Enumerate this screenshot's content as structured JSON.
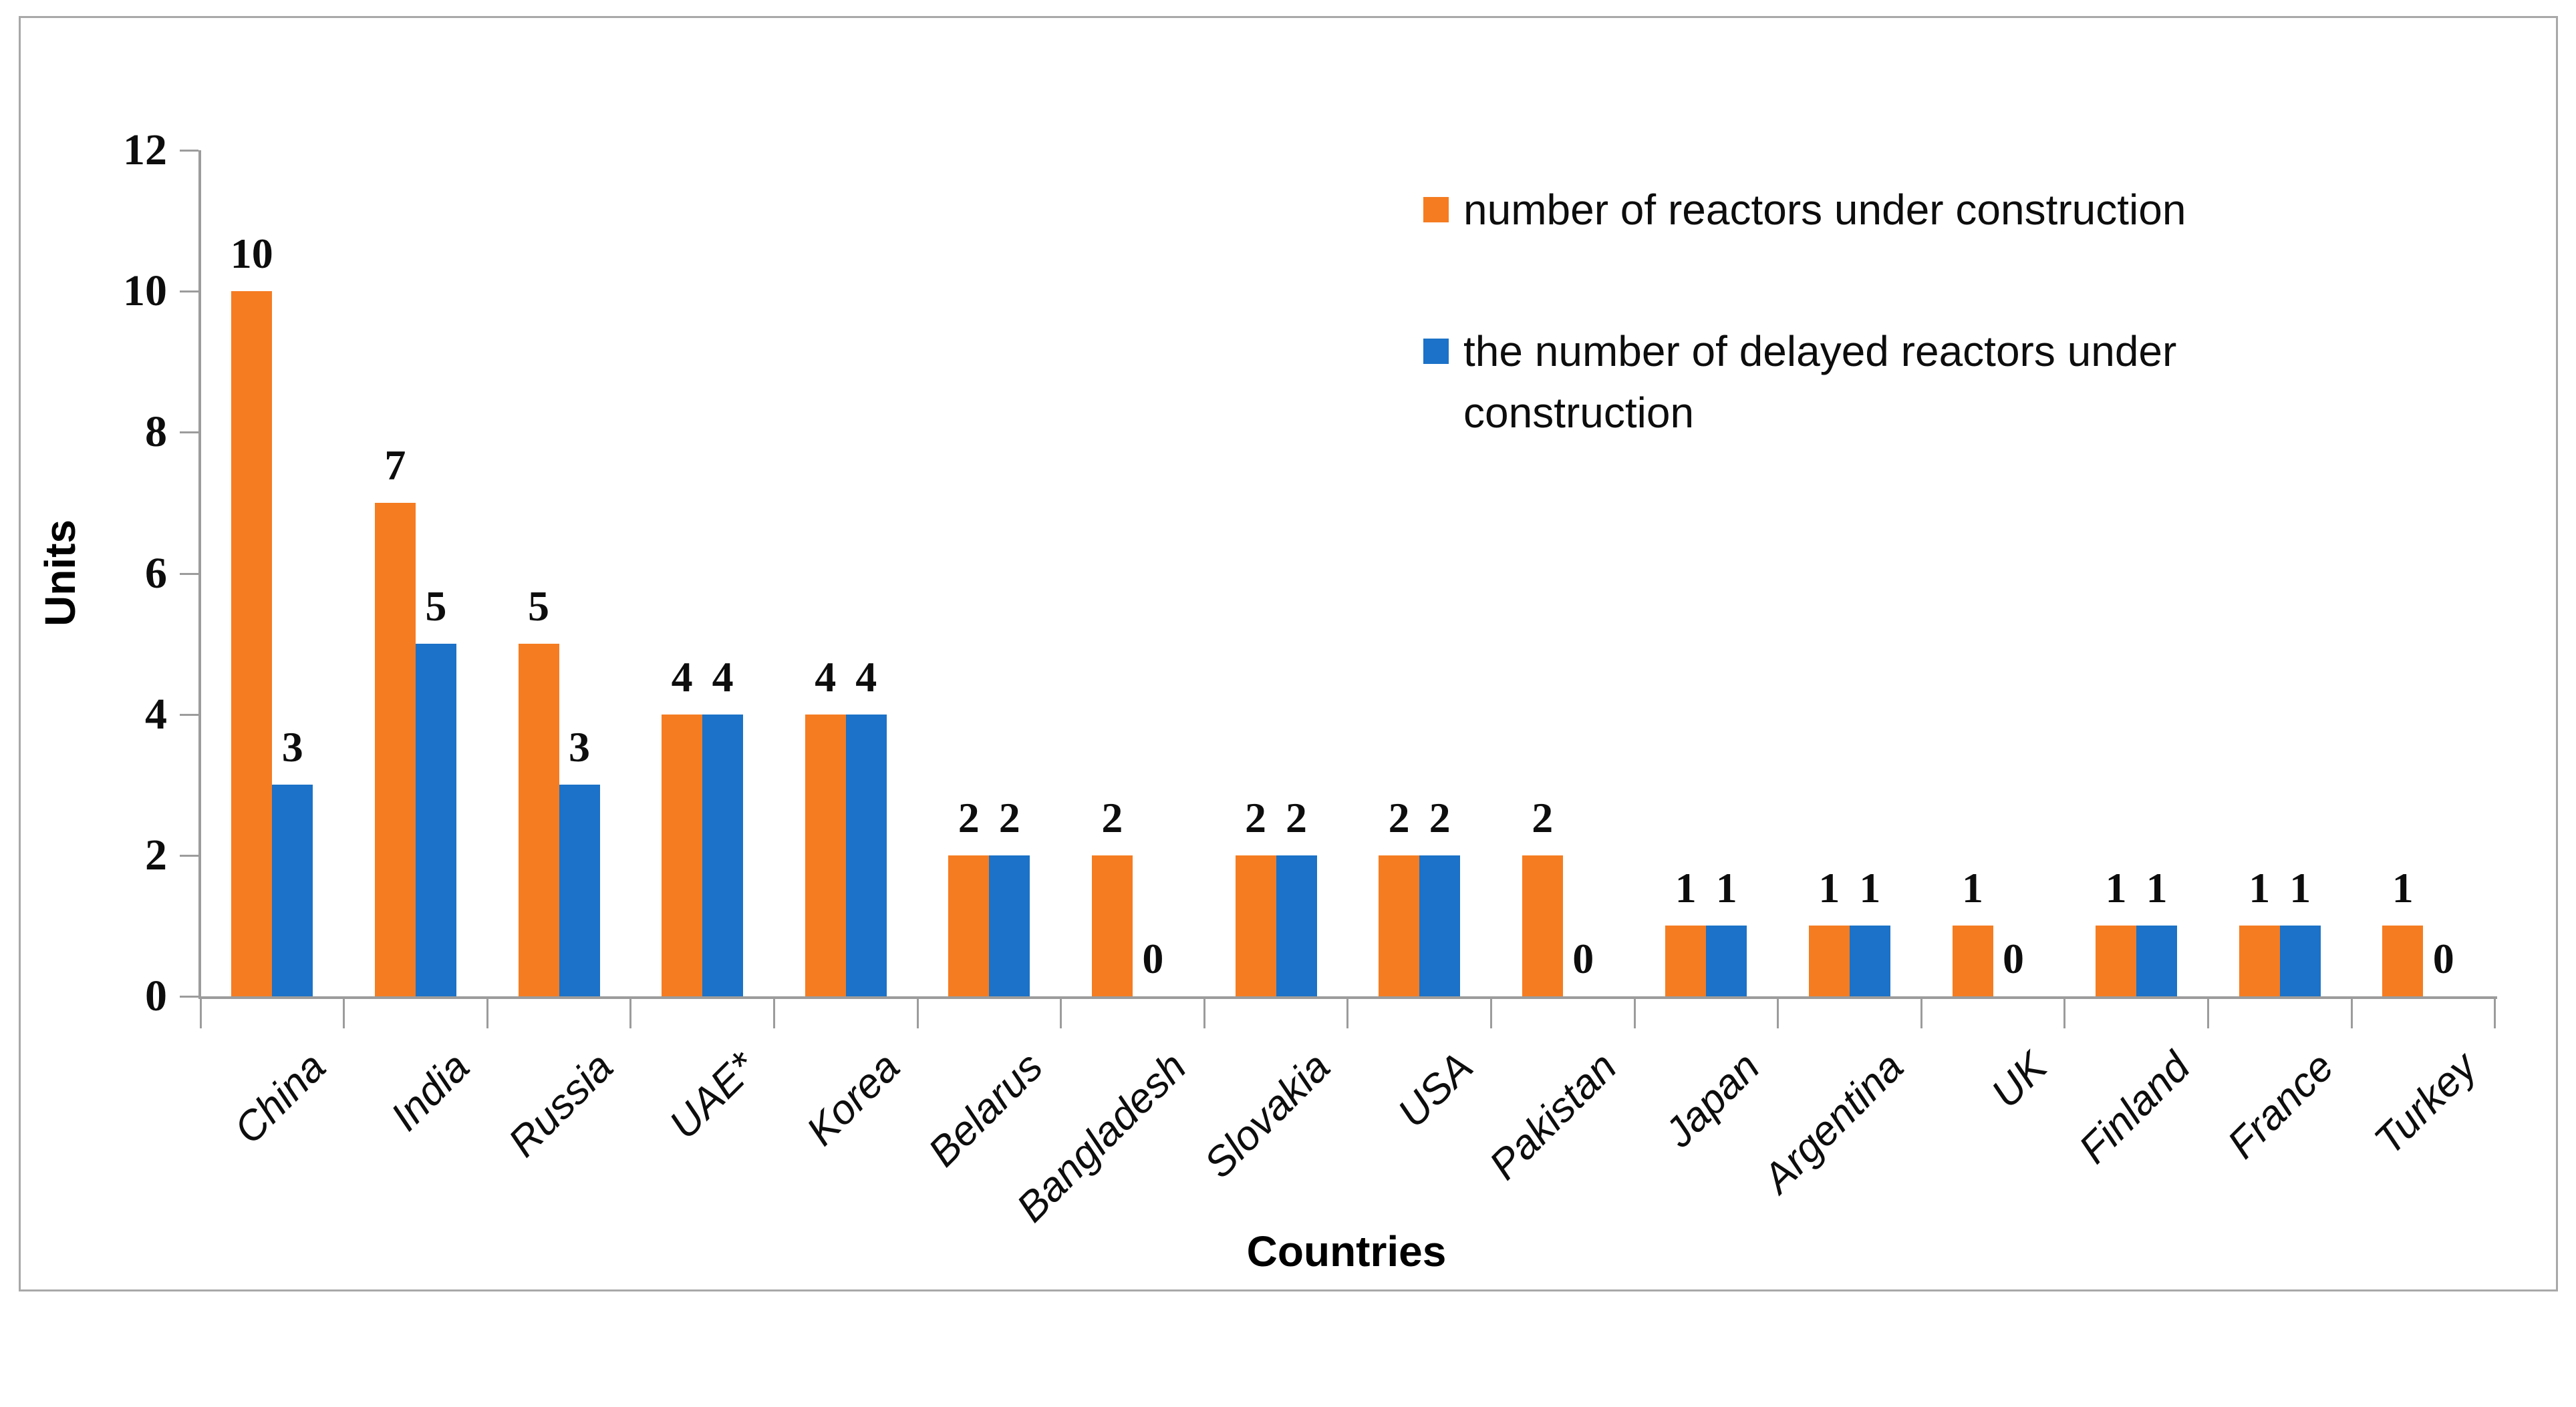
{
  "chart_data": {
    "type": "bar",
    "title": "",
    "xlabel": "Countries",
    "ylabel": "Units",
    "ylim": [
      0,
      12
    ],
    "yticks": [
      0,
      2,
      4,
      6,
      8,
      10,
      12
    ],
    "grid": false,
    "data_labels": true,
    "legend_position": "top-right",
    "categories": [
      "China",
      "India",
      "Russia",
      "UAE*",
      "Korea",
      "Belarus",
      "Bangladesh",
      "Slovakia",
      "USA",
      "Pakistan",
      "Japan",
      "Argentina",
      "UK",
      "Finland",
      "France",
      "Turkey"
    ],
    "series": [
      {
        "name": "number of reactors under construction",
        "color": "#F57C21",
        "values": [
          10,
          7,
          5,
          4,
          4,
          2,
          2,
          2,
          2,
          2,
          1,
          1,
          1,
          1,
          1,
          1
        ]
      },
      {
        "name": "the number of delayed reactors under construction",
        "color": "#1B72C8",
        "values": [
          3,
          5,
          3,
          4,
          4,
          2,
          0,
          2,
          2,
          0,
          1,
          1,
          0,
          1,
          1,
          0
        ]
      }
    ],
    "colors": {
      "axis": "#9C9C9C",
      "frame_border": "#A8A8A8",
      "text": "#000000"
    }
  }
}
